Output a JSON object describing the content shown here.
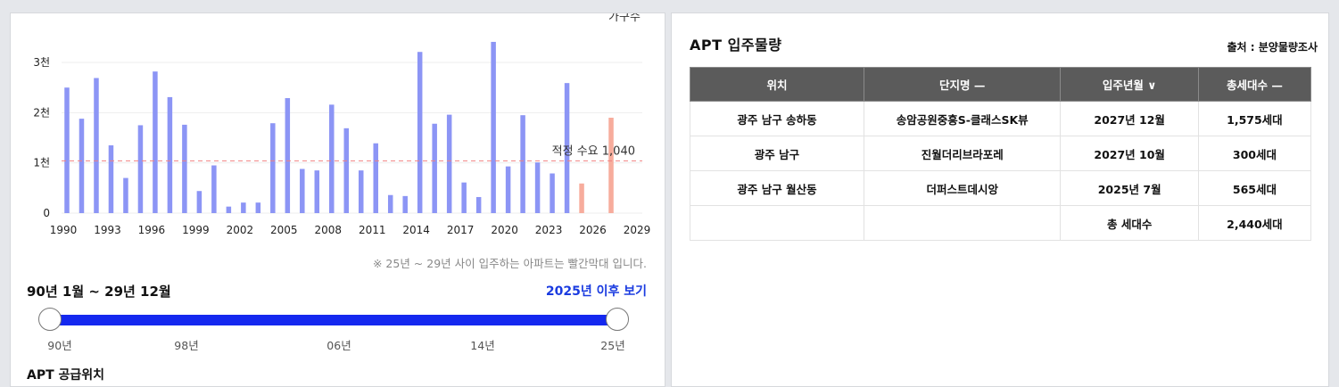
{
  "chart_data": {
    "type": "bar",
    "legend_label": "가구수",
    "x": [
      1990,
      1991,
      1992,
      1993,
      1994,
      1995,
      1996,
      1997,
      1998,
      1999,
      2000,
      2001,
      2002,
      2003,
      2004,
      2005,
      2006,
      2007,
      2008,
      2009,
      2010,
      2011,
      2012,
      2013,
      2014,
      2015,
      2016,
      2017,
      2018,
      2019,
      2020,
      2021,
      2022,
      2023,
      2024,
      2025,
      2026,
      2027,
      2028,
      2029
    ],
    "values": [
      2500,
      1880,
      2690,
      1350,
      700,
      1750,
      2820,
      2310,
      1760,
      440,
      950,
      130,
      210,
      210,
      1790,
      2290,
      880,
      850,
      2160,
      1690,
      850,
      1390,
      360,
      340,
      3210,
      1780,
      1960,
      610,
      320,
      3410,
      930,
      1950,
      1010,
      790,
      2590,
      590,
      0,
      1900,
      0,
      0
    ],
    "highlight_start_year": 2025,
    "x_ticks": [
      "1990",
      "1993",
      "1996",
      "1999",
      "2002",
      "2005",
      "2008",
      "2011",
      "2014",
      "2017",
      "2020",
      "2023",
      "2026",
      "2029"
    ],
    "y_ticks": [
      "0",
      "1천",
      "2천",
      "3천"
    ],
    "ylim": [
      0,
      3800
    ],
    "reference": {
      "label": "적정 수요 1,040",
      "value": 1040
    },
    "colors": {
      "bar": "#8c95f5",
      "highlight": "#f7ac9c",
      "reference": "#f08080"
    }
  },
  "note": "※ 25년 ~ 29년 사이 입주하는 아파트는 빨간막대 입니다.",
  "range": {
    "title": "90년 1월 ~ 29년 12월",
    "link": "2025년 이후 보기",
    "ticks": [
      "90년",
      "98년",
      "06년",
      "14년",
      "25년"
    ]
  },
  "supply_title": "APT 공급위치",
  "apt": {
    "title": "APT 입주물량",
    "source": "출처 : 분양물량조사",
    "headers": [
      "위치",
      "단지명 —",
      "입주년월 ∨",
      "총세대수 —"
    ],
    "rows": [
      [
        "광주 남구 송하동",
        "송암공원중흥S-클래스SK뷰",
        "2027년 12월",
        "1,575세대"
      ],
      [
        "광주 남구",
        "진월더리브라포레",
        "2027년 10월",
        "300세대"
      ],
      [
        "광주 남구 월산동",
        "더퍼스트데시앙",
        "2025년 7월",
        "565세대"
      ],
      [
        "",
        "",
        "총 세대수",
        "2,440세대"
      ]
    ]
  }
}
